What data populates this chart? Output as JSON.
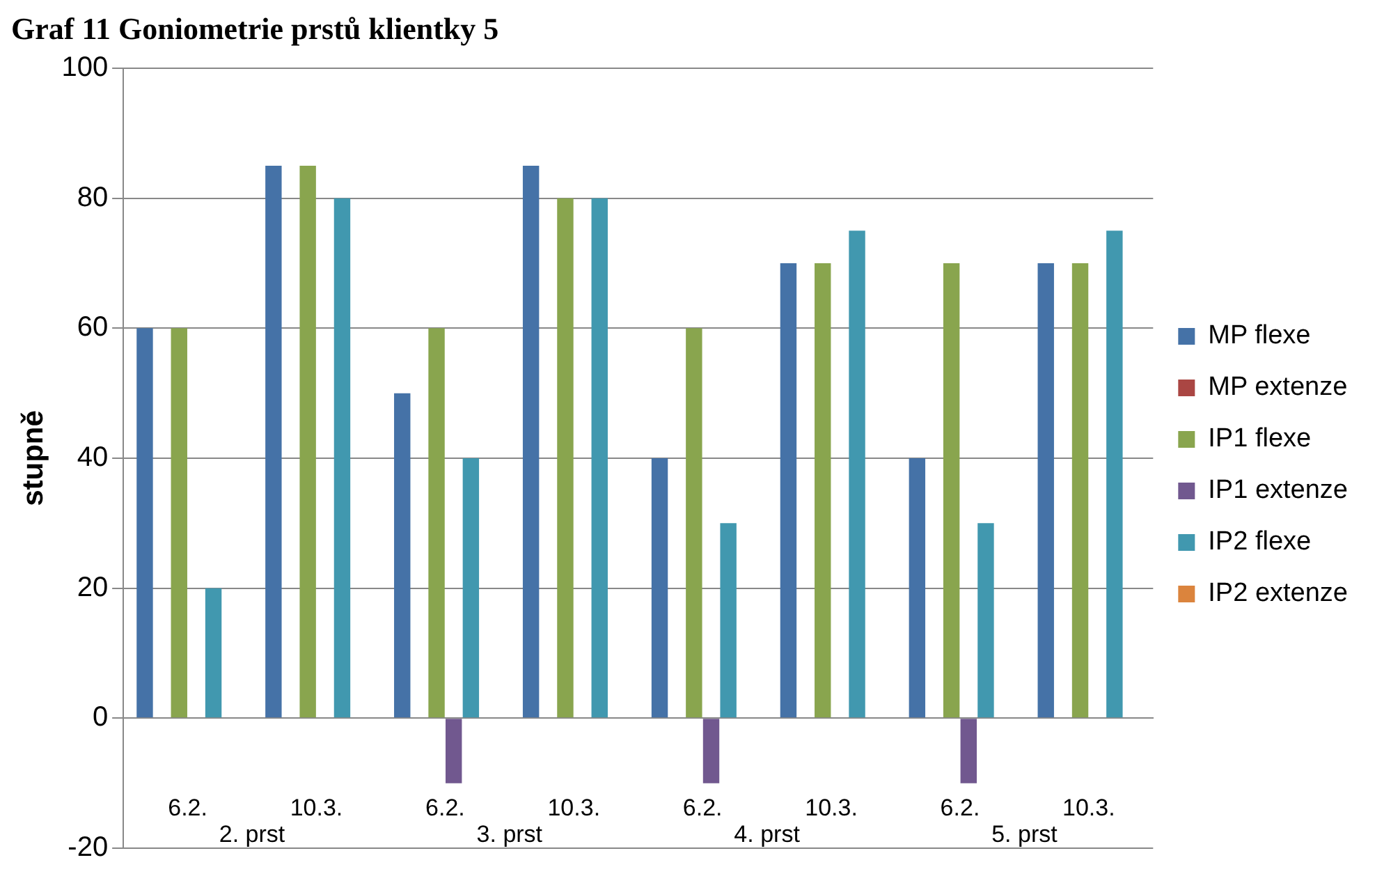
{
  "chart_data": {
    "type": "bar",
    "title": "Graf 11 Goniometrie prstů klientky 5",
    "ylabel": "stupně",
    "categories": [
      "6.2.",
      "10.3.",
      "6.2.",
      "10.3.",
      "6.2.",
      "10.3.",
      "6.2.",
      "10.3."
    ],
    "annotations": [
      "2. prst",
      "3. prst",
      "4. prst",
      "5. prst"
    ],
    "series": [
      {
        "name": "MP flexe",
        "color": "#4572a7",
        "values": [
          60,
          85,
          50,
          85,
          40,
          70,
          40,
          70
        ]
      },
      {
        "name": "MP extenze",
        "color": "#aa4643",
        "values": [
          0,
          0,
          0,
          0,
          0,
          0,
          0,
          0
        ]
      },
      {
        "name": "IP1 flexe",
        "color": "#89a54e",
        "values": [
          60,
          85,
          60,
          80,
          60,
          70,
          70,
          70
        ]
      },
      {
        "name": "IP1 extenze",
        "color": "#71588f",
        "values": [
          0,
          0,
          -10,
          0,
          -10,
          0,
          -10,
          0
        ]
      },
      {
        "name": "IP2 flexe",
        "color": "#4198af",
        "values": [
          20,
          80,
          40,
          80,
          30,
          75,
          30,
          75
        ]
      },
      {
        "name": "IP2 extenze",
        "color": "#db843d",
        "values": [
          0,
          0,
          0,
          0,
          0,
          0,
          0,
          0
        ]
      }
    ],
    "ylim": [
      -20,
      100
    ],
    "yticks": [
      -20,
      0,
      20,
      40,
      60,
      80,
      100
    ],
    "grid": "y",
    "legend": "right"
  }
}
